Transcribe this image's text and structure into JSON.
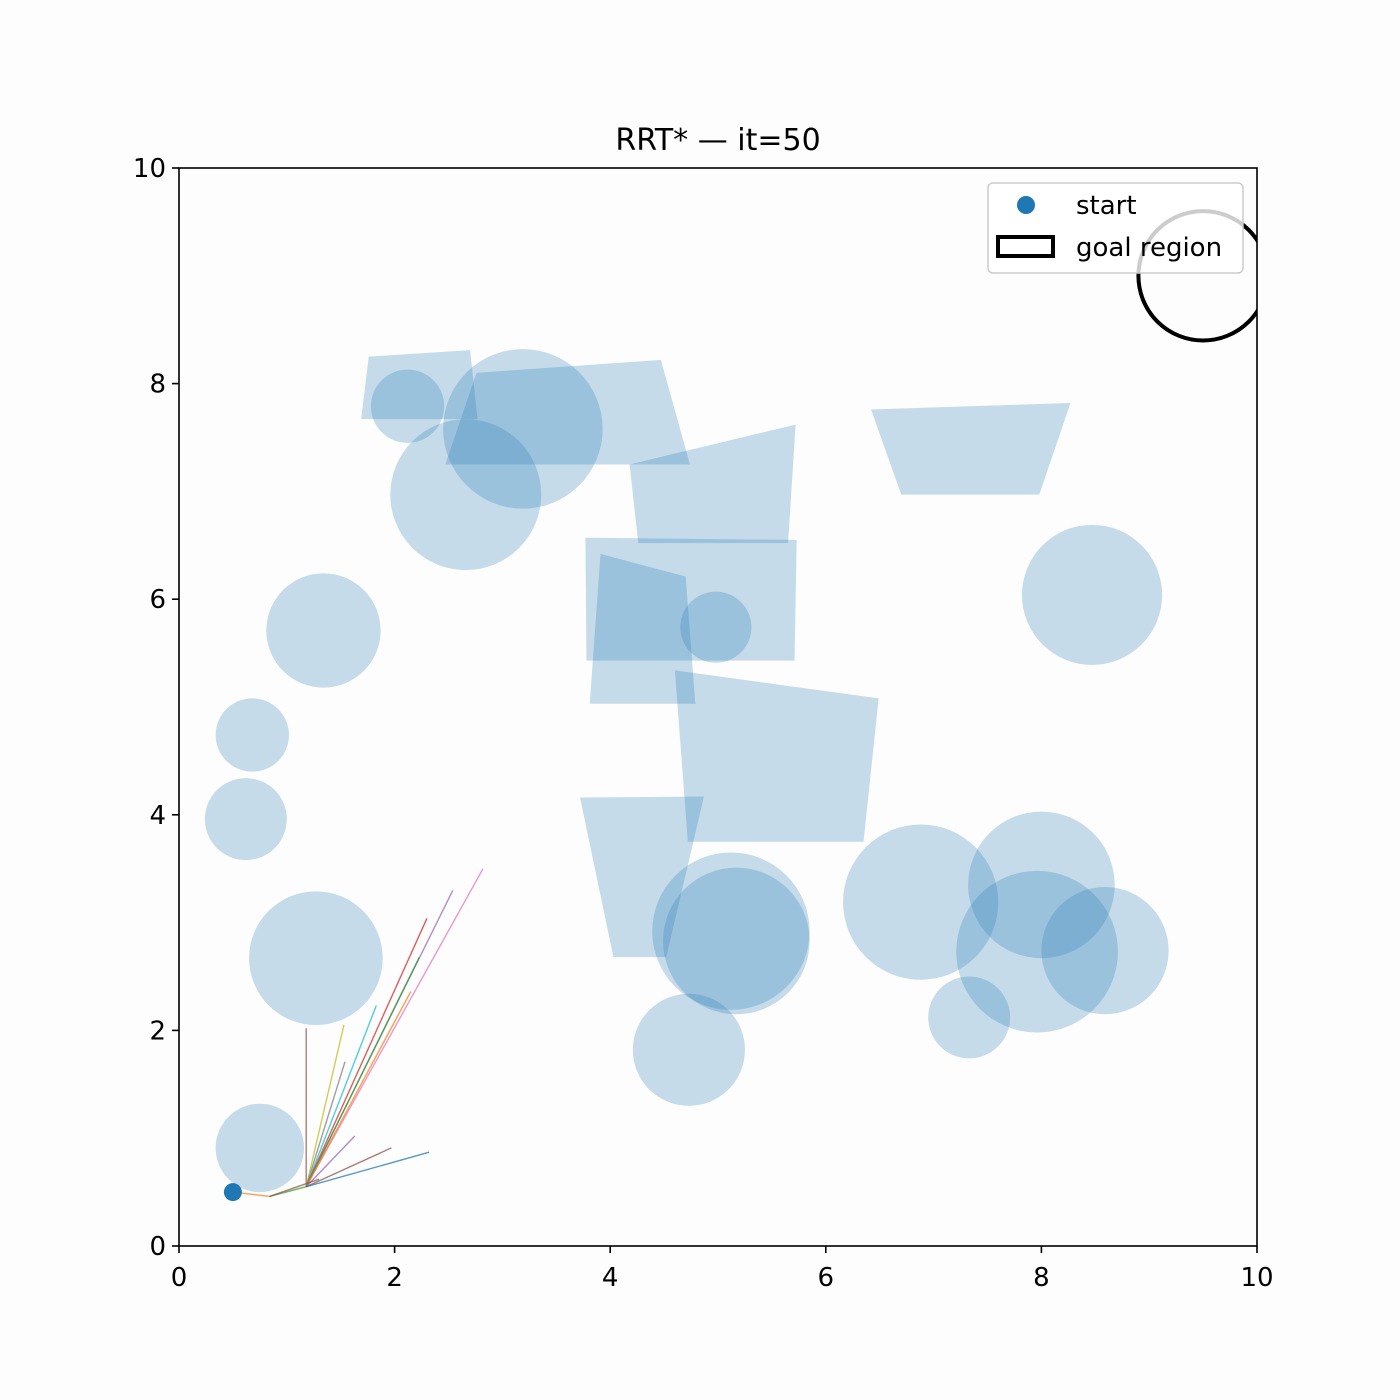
{
  "chart_data": {
    "type": "scatter",
    "title": "RRT* — it=50",
    "xlabel": "",
    "ylabel": "",
    "xlim": [
      0,
      10
    ],
    "ylim": [
      0,
      10
    ],
    "xticks": [
      0,
      2,
      4,
      6,
      8,
      10
    ],
    "yticks": [
      0,
      2,
      4,
      6,
      8,
      10
    ],
    "grid": false,
    "legend": {
      "position": "upper right",
      "entries": [
        {
          "label": "start",
          "marker": "circle",
          "color": "#1f77b4"
        },
        {
          "label": "goal region",
          "marker": "rectangle-outline",
          "color": "#000000"
        }
      ]
    },
    "start": {
      "x": 0.5,
      "y": 0.5,
      "color": "#1f77b4"
    },
    "goal_region": {
      "x": 9.5,
      "y": 9.0,
      "r": 0.6,
      "color": "#000000"
    },
    "obstacle_color": "#1f77b4",
    "obstacle_alpha": 0.25,
    "circle_obstacles": [
      {
        "x": 2.12,
        "y": 7.79,
        "r": 0.34
      },
      {
        "x": 3.19,
        "y": 7.58,
        "r": 0.74
      },
      {
        "x": 2.66,
        "y": 6.97,
        "r": 0.7
      },
      {
        "x": 1.34,
        "y": 5.71,
        "r": 0.53
      },
      {
        "x": 0.68,
        "y": 4.74,
        "r": 0.34
      },
      {
        "x": 0.62,
        "y": 3.96,
        "r": 0.38
      },
      {
        "x": 1.27,
        "y": 2.67,
        "r": 0.62
      },
      {
        "x": 0.75,
        "y": 0.91,
        "r": 0.41
      },
      {
        "x": 4.98,
        "y": 5.74,
        "r": 0.33
      },
      {
        "x": 8.47,
        "y": 6.04,
        "r": 0.65
      },
      {
        "x": 5.12,
        "y": 2.92,
        "r": 0.73
      },
      {
        "x": 5.17,
        "y": 2.83,
        "r": 0.68
      },
      {
        "x": 4.73,
        "y": 1.82,
        "r": 0.52
      },
      {
        "x": 6.88,
        "y": 3.19,
        "r": 0.72
      },
      {
        "x": 8.0,
        "y": 3.35,
        "r": 0.68
      },
      {
        "x": 7.96,
        "y": 2.73,
        "r": 0.75
      },
      {
        "x": 8.59,
        "y": 2.74,
        "r": 0.59
      },
      {
        "x": 7.33,
        "y": 2.12,
        "r": 0.38
      }
    ],
    "polygon_obstacles": [
      [
        [
          1.76,
          8.25
        ],
        [
          2.7,
          8.31
        ],
        [
          2.77,
          7.67
        ],
        [
          1.69,
          7.67
        ]
      ],
      [
        [
          2.76,
          8.1
        ],
        [
          4.47,
          8.22
        ],
        [
          4.74,
          7.25
        ],
        [
          2.47,
          7.25
        ]
      ],
      [
        [
          4.18,
          7.25
        ],
        [
          5.72,
          7.62
        ],
        [
          5.65,
          6.52
        ],
        [
          4.26,
          6.52
        ]
      ],
      [
        [
          6.42,
          7.76
        ],
        [
          8.27,
          7.82
        ],
        [
          7.98,
          6.97
        ],
        [
          6.7,
          6.97
        ]
      ],
      [
        [
          3.77,
          6.57
        ],
        [
          5.73,
          6.55
        ],
        [
          5.71,
          5.43
        ],
        [
          3.78,
          5.43
        ]
      ],
      [
        [
          3.91,
          6.42
        ],
        [
          4.7,
          6.21
        ],
        [
          4.79,
          5.03
        ],
        [
          3.81,
          5.03
        ]
      ],
      [
        [
          4.6,
          5.34
        ],
        [
          6.49,
          5.08
        ],
        [
          6.35,
          3.75
        ],
        [
          4.72,
          3.75
        ]
      ],
      [
        [
          3.72,
          4.16
        ],
        [
          4.87,
          4.17
        ],
        [
          4.52,
          2.68
        ],
        [
          4.03,
          2.68
        ]
      ]
    ],
    "tree_edges": [
      {
        "from": [
          0.5,
          0.5
        ],
        "to": [
          0.84,
          0.46
        ],
        "color": "#ff7f0e"
      },
      {
        "from": [
          0.84,
          0.46
        ],
        "to": [
          1.18,
          0.55
        ],
        "color": "#2ca02c"
      },
      {
        "from": [
          1.18,
          0.55
        ],
        "to": [
          1.18,
          2.02
        ],
        "color": "#8c564b"
      },
      {
        "from": [
          1.18,
          0.55
        ],
        "to": [
          1.53,
          2.05
        ],
        "color": "#bcbd22"
      },
      {
        "from": [
          1.18,
          0.55
        ],
        "to": [
          1.54,
          1.71
        ],
        "color": "#7f7f7f"
      },
      {
        "from": [
          1.18,
          0.55
        ],
        "to": [
          1.83,
          2.23
        ],
        "color": "#17becf"
      },
      {
        "from": [
          1.18,
          0.55
        ],
        "to": [
          2.3,
          3.04
        ],
        "color": "#d62728"
      },
      {
        "from": [
          1.18,
          0.55
        ],
        "to": [
          2.54,
          3.3
        ],
        "color": "#9467bd"
      },
      {
        "from": [
          1.18,
          0.55
        ],
        "to": [
          2.82,
          3.5
        ],
        "color": "#e377c2"
      },
      {
        "from": [
          1.18,
          0.55
        ],
        "to": [
          2.23,
          2.68
        ],
        "color": "#2ca02c"
      },
      {
        "from": [
          1.18,
          0.55
        ],
        "to": [
          2.15,
          2.36
        ],
        "color": "#ff7f0e"
      },
      {
        "from": [
          1.18,
          0.55
        ],
        "to": [
          1.63,
          1.02
        ],
        "color": "#9467bd"
      },
      {
        "from": [
          1.18,
          0.55
        ],
        "to": [
          1.97,
          0.91
        ],
        "color": "#8c564b"
      },
      {
        "from": [
          1.18,
          0.55
        ],
        "to": [
          2.32,
          0.87
        ],
        "color": "#1f77b4"
      },
      {
        "from": [
          0.84,
          0.46
        ],
        "to": [
          1.3,
          0.62
        ],
        "color": "#8c564b"
      }
    ]
  }
}
